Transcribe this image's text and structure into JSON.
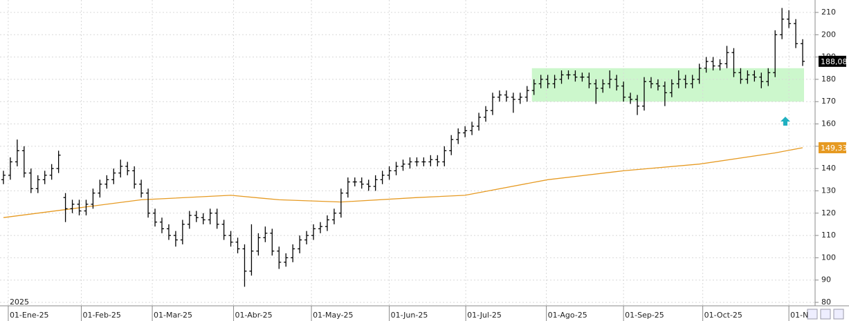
{
  "chart_data": {
    "type": "ohlc",
    "color": "#000000",
    "open": [
      135,
      137,
      143,
      148,
      138,
      131,
      135,
      137,
      140,
      127,
      122,
      124,
      121,
      124,
      129,
      133,
      135,
      138,
      141,
      139,
      133,
      129,
      120,
      116,
      113,
      110,
      108,
      115,
      119,
      118,
      117,
      120,
      115,
      110,
      107,
      104,
      94,
      103,
      109,
      111,
      103,
      98,
      100,
      104,
      108,
      110,
      113,
      114,
      117,
      120,
      129,
      134,
      134,
      133,
      132,
      135,
      137,
      139,
      141,
      142,
      143,
      143,
      143,
      144,
      143,
      148,
      153,
      156,
      157,
      159,
      163,
      166,
      172,
      173,
      172,
      171,
      172,
      175,
      178,
      180,
      178,
      180,
      182,
      182,
      181,
      181,
      178,
      176,
      178,
      180,
      177,
      172,
      171,
      168,
      179,
      178,
      177,
      174,
      178,
      180,
      178,
      180,
      185,
      188,
      186,
      187,
      192,
      183,
      180,
      182,
      181,
      179,
      183,
      200,
      207,
      205,
      196
    ],
    "high": [
      139,
      145,
      153,
      150,
      140,
      137,
      139,
      142,
      148,
      129,
      126,
      126,
      126,
      131,
      135,
      137,
      140,
      144,
      143,
      141,
      135,
      131,
      122,
      118,
      115,
      112,
      117,
      121,
      121,
      120,
      122,
      122,
      117,
      112,
      109,
      106,
      115,
      111,
      114,
      113,
      105,
      102,
      106,
      110,
      112,
      115,
      116,
      119,
      122,
      131,
      136,
      136,
      136,
      135,
      137,
      139,
      141,
      143,
      144,
      145,
      145,
      145,
      146,
      146,
      150,
      155,
      158,
      159,
      161,
      165,
      168,
      174,
      175,
      175,
      174,
      174,
      177,
      180,
      182,
      182,
      182,
      184,
      184,
      184,
      183,
      183,
      180,
      180,
      184,
      182,
      179,
      174,
      173,
      181,
      181,
      180,
      179,
      180,
      184,
      182,
      182,
      187,
      190,
      190,
      189,
      195,
      194,
      185,
      184,
      184,
      183,
      185,
      202,
      212,
      211,
      207,
      198
    ],
    "low": [
      133,
      135,
      141,
      136,
      129,
      129,
      133,
      135,
      138,
      116,
      120,
      119,
      119,
      122,
      127,
      131,
      133,
      136,
      137,
      131,
      127,
      118,
      114,
      111,
      108,
      105,
      106,
      113,
      116,
      115,
      115,
      113,
      108,
      105,
      102,
      87,
      92,
      101,
      107,
      101,
      95,
      96,
      98,
      102,
      106,
      108,
      111,
      112,
      115,
      118,
      127,
      132,
      131,
      130,
      130,
      133,
      135,
      137,
      139,
      140,
      141,
      141,
      141,
      141,
      141,
      146,
      151,
      154,
      155,
      157,
      161,
      164,
      170,
      170,
      165,
      169,
      170,
      173,
      176,
      176,
      176,
      178,
      180,
      179,
      179,
      176,
      169,
      174,
      176,
      175,
      170,
      169,
      164,
      166,
      176,
      175,
      168,
      172,
      176,
      176,
      176,
      178,
      183,
      184,
      184,
      185,
      181,
      178,
      178,
      179,
      176,
      177,
      181,
      198,
      203,
      194,
      186
    ],
    "close": [
      137,
      143,
      148,
      138,
      131,
      135,
      137,
      140,
      146,
      122,
      124,
      121,
      124,
      129,
      133,
      135,
      138,
      141,
      139,
      133,
      129,
      120,
      116,
      113,
      110,
      108,
      115,
      119,
      118,
      117,
      120,
      115,
      110,
      107,
      104,
      94,
      103,
      109,
      111,
      103,
      98,
      100,
      104,
      108,
      110,
      113,
      114,
      117,
      120,
      129,
      134,
      134,
      133,
      132,
      135,
      137,
      139,
      141,
      142,
      143,
      143,
      143,
      144,
      143,
      148,
      153,
      156,
      157,
      159,
      163,
      166,
      172,
      173,
      172,
      171,
      172,
      175,
      178,
      180,
      178,
      180,
      182,
      182,
      181,
      181,
      178,
      176,
      178,
      180,
      177,
      172,
      171,
      168,
      179,
      178,
      177,
      174,
      178,
      180,
      178,
      180,
      185,
      188,
      186,
      187,
      192,
      183,
      180,
      182,
      181,
      179,
      183,
      200,
      207,
      205,
      196,
      188.08
    ],
    "moving_average": {
      "color": "#e69a22",
      "x": [
        0,
        10,
        20,
        33,
        40,
        49,
        60,
        67,
        79,
        90,
        101,
        112,
        116
      ],
      "values": [
        118,
        122,
        126,
        128,
        126,
        125,
        127,
        128,
        135,
        139,
        142,
        147,
        149.33
      ]
    },
    "zone": {
      "from": 76.7,
      "to": 116.2,
      "low": 170,
      "high": 185,
      "color": "#ccf7cc"
    },
    "markers": [
      {
        "value": 188.08,
        "label": "188,08",
        "color": "#000000"
      },
      {
        "value": 149.33,
        "label": "149,33",
        "color": "#e69a22"
      }
    ],
    "year_label": "2025",
    "xlim": [
      -0.5,
      117
    ],
    "xticks": [
      {
        "value": 0.7,
        "label": "01-Ene-25"
      },
      {
        "value": 11.3,
        "label": "01-Feb-25"
      },
      {
        "value": 21.6,
        "label": "01-Mar-25"
      },
      {
        "value": 33.4,
        "label": "01-Abr-25"
      },
      {
        "value": 44.7,
        "label": "01-May-25"
      },
      {
        "value": 56,
        "label": "01-Jun-25"
      },
      {
        "value": 67.1,
        "label": "01-Jul-25"
      },
      {
        "value": 78.8,
        "label": "01-Ago-25"
      },
      {
        "value": 90,
        "label": "01-Sep-25"
      },
      {
        "value": 101.5,
        "label": "01-Oct-25"
      },
      {
        "value": 114,
        "label": "01-N"
      }
    ],
    "ylim": [
      80,
      210
    ],
    "yticks": [
      80,
      90,
      100,
      110,
      120,
      130,
      140,
      150,
      160,
      170,
      180,
      190,
      200,
      210
    ],
    "grid": true
  }
}
